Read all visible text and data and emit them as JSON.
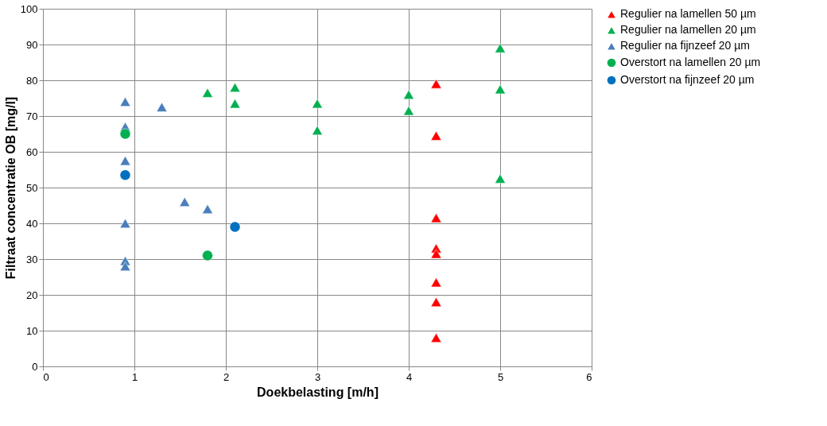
{
  "chart_data": {
    "type": "scatter",
    "xlabel": "Doekbelasting [m/h]",
    "ylabel": "Filtraat concentratie OB [mg/l]",
    "xlim": [
      0,
      6
    ],
    "xticks": [
      0,
      1,
      2,
      3,
      4,
      5,
      6
    ],
    "ylim": [
      0,
      100
    ],
    "yticks": [
      0,
      10,
      20,
      30,
      40,
      50,
      60,
      70,
      80,
      90,
      100
    ],
    "grid": true,
    "legend": "right",
    "series": [
      {
        "name": "Regulier na lamellen 50 µm",
        "color": "#ff0000",
        "marker": "triangle",
        "x": [
          4.3,
          4.3,
          4.3,
          4.3,
          4.3,
          4.3,
          4.3,
          4.3
        ],
        "values": [
          79,
          64.5,
          41.5,
          33,
          31.5,
          23.5,
          18,
          8
        ]
      },
      {
        "name": "Regulier na lamellen 20 µm",
        "color": "#00b050",
        "marker": "triangle",
        "x": [
          1.8,
          2.1,
          2.1,
          3,
          3,
          4,
          4,
          5,
          5,
          5
        ],
        "values": [
          76.5,
          78,
          73.5,
          73.5,
          66,
          76,
          71.5,
          89,
          77.5,
          52.5
        ]
      },
      {
        "name": "Regulier na fijnzeef 20 µm",
        "color": "#4a7ebb",
        "marker": "triangle",
        "x": [
          0.9,
          0.9,
          0.9,
          0.9,
          0.9,
          0.9,
          1.3,
          1.55,
          1.8
        ],
        "values": [
          74,
          67,
          57.5,
          40,
          29.5,
          28,
          72.5,
          46,
          44
        ]
      },
      {
        "name": "Overstort na lamellen 20 µm",
        "color": "#00b050",
        "marker": "circle",
        "x": [
          0.9,
          1.8
        ],
        "values": [
          65,
          31
        ]
      },
      {
        "name": "Overstort na fijnzeef 20 µm",
        "color": "#0070c0",
        "marker": "circle",
        "x": [
          0.9,
          2.1
        ],
        "values": [
          53.5,
          39
        ]
      }
    ]
  }
}
